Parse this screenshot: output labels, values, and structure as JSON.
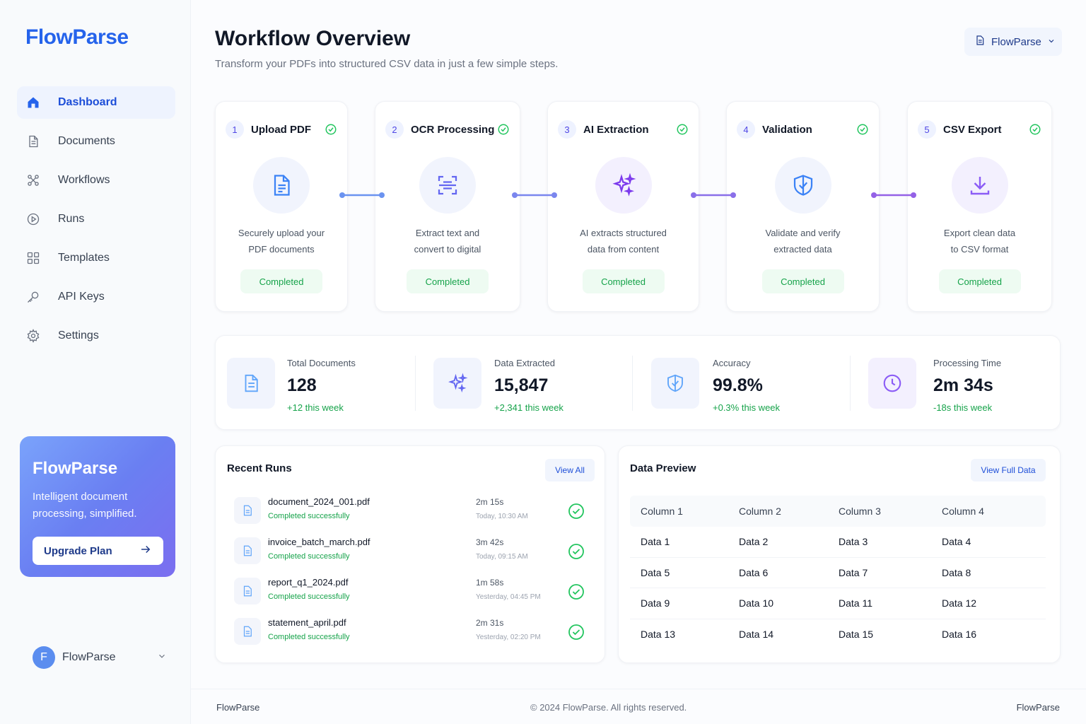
{
  "app": {
    "logo": "FlowParse"
  },
  "sidebar": {
    "items": [
      {
        "label": "Dashboard",
        "icon": "home-icon",
        "active": true
      },
      {
        "label": "Documents",
        "icon": "document-icon",
        "active": false
      },
      {
        "label": "Workflows",
        "icon": "workflow-icon",
        "active": false
      },
      {
        "label": "Runs",
        "icon": "play-circle-icon",
        "active": false
      },
      {
        "label": "Templates",
        "icon": "grid-icon",
        "active": false
      },
      {
        "label": "API Keys",
        "icon": "key-icon",
        "active": false
      },
      {
        "label": "Settings",
        "icon": "gear-icon",
        "active": false
      }
    ],
    "promo": {
      "title": "FlowParse",
      "text": "Intelligent document processing, simplified.",
      "button": "Upgrade Plan"
    },
    "user": {
      "initial": "F",
      "name": "FlowParse"
    }
  },
  "header": {
    "title": "Workflow Overview",
    "subtitle": "Transform your PDFs into structured CSV data in just a few simple steps.",
    "workspace": "FlowParse"
  },
  "steps": [
    {
      "num": "1",
      "title": "Upload PDF",
      "desc1": "Securely upload your",
      "desc2": "PDF documents",
      "status": "Completed",
      "icon": "file-upload-icon"
    },
    {
      "num": "2",
      "title": "OCR Processing",
      "desc1": "Extract text and",
      "desc2": "convert to digital",
      "status": "Completed",
      "icon": "scan-icon"
    },
    {
      "num": "3",
      "title": "AI Extraction",
      "desc1": "AI extracts structured",
      "desc2": "data from content",
      "status": "Completed",
      "icon": "sparkles-icon"
    },
    {
      "num": "4",
      "title": "Validation",
      "desc1": "Validate and verify",
      "desc2": "extracted data",
      "status": "Completed",
      "icon": "shield-check-icon"
    },
    {
      "num": "5",
      "title": "CSV Export",
      "desc1": "Export clean data",
      "desc2": "to CSV format",
      "status": "Completed",
      "icon": "download-icon"
    }
  ],
  "stats": [
    {
      "label": "Total Documents",
      "value": "128",
      "delta": "+12 this week",
      "icon": "document-icon"
    },
    {
      "label": "Data Extracted",
      "value": "15,847",
      "delta": "+2,341 this week",
      "icon": "sparkles-icon"
    },
    {
      "label": "Accuracy",
      "value": "99.8%",
      "delta": "+0.3% this week",
      "icon": "shield-check-icon"
    },
    {
      "label": "Processing Time",
      "value": "2m 34s",
      "delta": "-18s this week",
      "icon": "clock-icon"
    }
  ],
  "recent_runs": {
    "title": "Recent Runs",
    "button": "View All",
    "rows": [
      {
        "name": "document_2024_001.pdf",
        "status": "Completed successfully",
        "duration": "2m 15s",
        "time": "Today, 10:30 AM"
      },
      {
        "name": "invoice_batch_march.pdf",
        "status": "Completed successfully",
        "duration": "3m 42s",
        "time": "Today, 09:15 AM"
      },
      {
        "name": "report_q1_2024.pdf",
        "status": "Completed successfully",
        "duration": "1m 58s",
        "time": "Yesterday, 04:45 PM"
      },
      {
        "name": "statement_april.pdf",
        "status": "Completed successfully",
        "duration": "2m 31s",
        "time": "Yesterday, 02:20 PM"
      }
    ]
  },
  "data_preview": {
    "title": "Data Preview",
    "button": "View Full Data",
    "columns": [
      "Column 1",
      "Column 2",
      "Column 3",
      "Column 4"
    ],
    "rows": [
      [
        "Data 1",
        "Data 2",
        "Data 3",
        "Data 4"
      ],
      [
        "Data 5",
        "Data 6",
        "Data 7",
        "Data 8"
      ],
      [
        "Data 9",
        "Data 10",
        "Data 11",
        "Data 12"
      ],
      [
        "Data 13",
        "Data 14",
        "Data 15",
        "Data 16"
      ]
    ]
  },
  "footer": {
    "left": "FlowParse",
    "center": "© 2024 FlowParse. All rights reserved.",
    "right": "FlowParse"
  },
  "colors": {
    "primary": "#2563eb",
    "success": "#16a34a",
    "accent_purple": "#7c3aed"
  }
}
